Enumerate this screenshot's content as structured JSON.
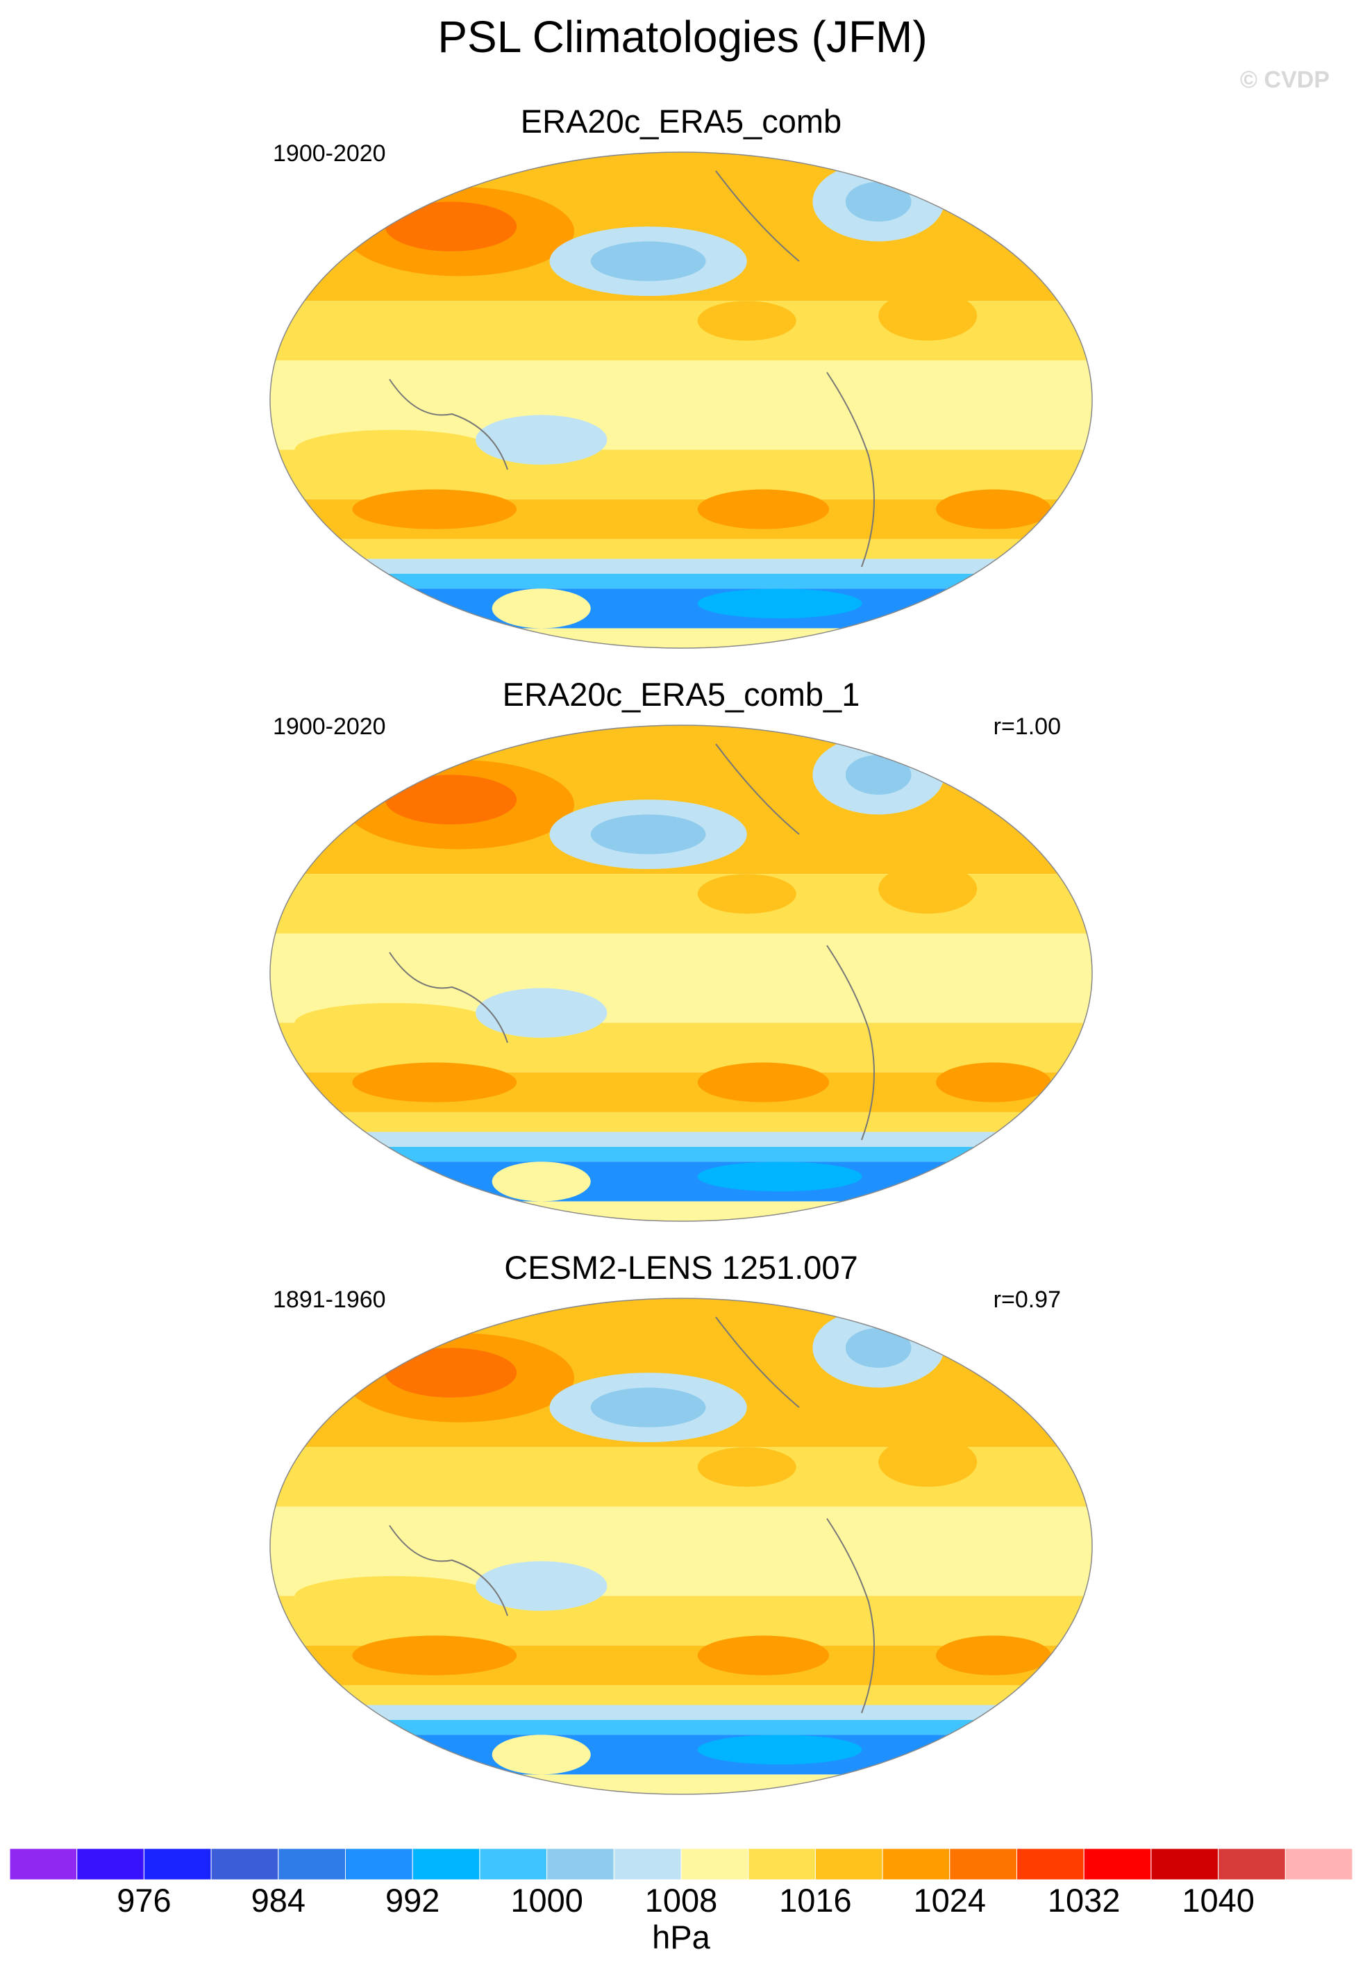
{
  "title": "PSL Climatologies (JFM)",
  "watermark": "© CVDP",
  "panels": [
    {
      "title": "ERA20c_ERA5_comb",
      "period": "1900-2020"
    },
    {
      "title": "ERA20c_ERA5_comb_1",
      "period": "1900-2020",
      "correlation": "r=1.00"
    },
    {
      "title": "CESM2-LENS 1251.007",
      "period": "1891-1960",
      "correlation": "r=0.97"
    }
  ],
  "colorbar": {
    "colors": [
      "#9128ef",
      "#3811ff",
      "#1a24ff",
      "#3c5dd8",
      "#2f7be8",
      "#1e90ff",
      "#00b4ff",
      "#40c4ff",
      "#8ecbed",
      "#bfe3f5",
      "#fff79e",
      "#ffe14f",
      "#ffc21d",
      "#ff9d00",
      "#ff7300",
      "#ff3d00",
      "#ff0000",
      "#d10000",
      "#d93b3b",
      "#ffb3b3"
    ],
    "lim": [
      968,
      1048
    ],
    "ticks": [
      976,
      984,
      992,
      1000,
      1008,
      1016,
      1024,
      1032,
      1040
    ],
    "units": "hPa"
  }
}
